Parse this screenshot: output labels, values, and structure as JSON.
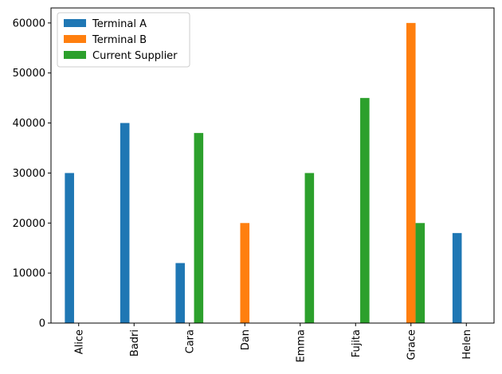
{
  "chart_data": {
    "type": "bar",
    "categories": [
      "Alice",
      "Badri",
      "Cara",
      "Dan",
      "Emma",
      "Fujita",
      "Grace",
      "Helen"
    ],
    "series": [
      {
        "name": "Terminal A",
        "color": "#1f77b4",
        "values": [
          30000,
          40000,
          12000,
          0,
          0,
          0,
          0,
          18000
        ]
      },
      {
        "name": "Terminal B",
        "color": "#ff7f0e",
        "values": [
          0,
          0,
          0,
          20000,
          0,
          0,
          60000,
          0
        ]
      },
      {
        "name": "Current Supplier",
        "color": "#2ca02c",
        "values": [
          0,
          0,
          38000,
          0,
          30000,
          45000,
          20000,
          0
        ]
      }
    ],
    "y_ticks": [
      0,
      10000,
      20000,
      30000,
      40000,
      50000,
      60000
    ],
    "ylim": [
      0,
      63000
    ],
    "legend_position": "top-left",
    "grid": false
  }
}
